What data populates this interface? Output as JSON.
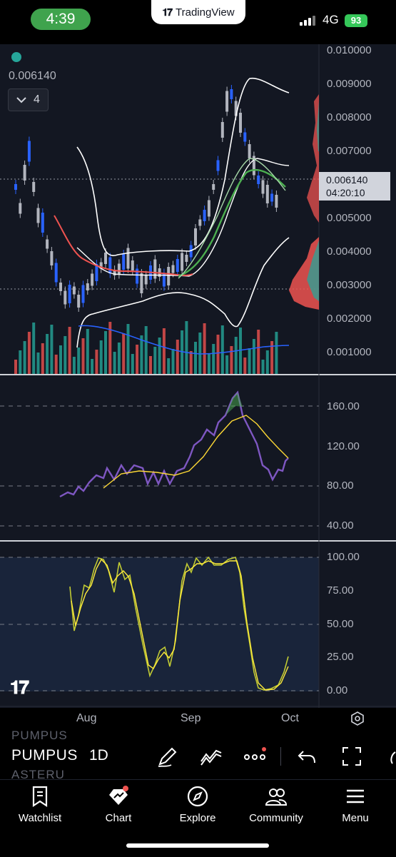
{
  "status_bar": {
    "time": "4:39",
    "app_name": "TradingView",
    "network": "4G",
    "battery": "93"
  },
  "legend": {
    "last_value": "0.006140",
    "collapse_count": "4"
  },
  "main_pane": {
    "price_ticks": [
      "0.010000",
      "0.009000",
      "0.008000",
      "0.007000",
      "0.005000",
      "0.004000",
      "0.003000",
      "0.002000",
      "0.001000"
    ],
    "current_price": "0.006140",
    "countdown": "04:20:10"
  },
  "rsi_pane": {
    "ticks": [
      "160.00",
      "120.00",
      "80.00",
      "40.00"
    ]
  },
  "stoch_pane": {
    "ticks": [
      "100.00",
      "75.00",
      "50.00",
      "25.00",
      "0.00"
    ]
  },
  "time_axis": {
    "labels": [
      "Aug",
      "Sep",
      "Oct"
    ]
  },
  "toolbar": {
    "symbol": "PUMPUS",
    "symbol_above": "PUMPUS",
    "symbol_below": "ASTERU",
    "interval": "1D"
  },
  "bottom_nav": [
    {
      "label": "Watchlist",
      "icon": "bookmark-icon"
    },
    {
      "label": "Chart",
      "icon": "chart-icon"
    },
    {
      "label": "Explore",
      "icon": "compass-icon"
    },
    {
      "label": "Community",
      "icon": "people-icon"
    },
    {
      "label": "Menu",
      "icon": "menu-icon"
    }
  ],
  "colors": {
    "up": "#26a69a",
    "down": "#ef5350",
    "candle_up": "#b2b5be",
    "candle_down": "#2962ff",
    "rsi": "#7e57c2",
    "rsi_ma": "#fdd835",
    "stoch_k": "#c0ca33",
    "stoch_d": "#ffeb3b"
  }
}
